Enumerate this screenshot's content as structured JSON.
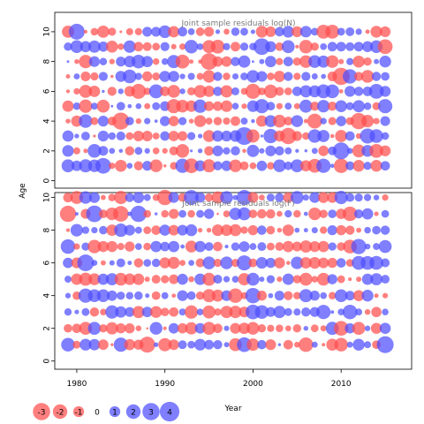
{
  "chart_data": {
    "type": "scatter",
    "variant": "bubble",
    "xlabel": "Year",
    "ylabel": "Age",
    "x_ticks": [
      1980,
      1990,
      2000,
      2010
    ],
    "y_ticks": [
      0,
      2,
      4,
      6,
      8,
      10
    ],
    "xlim": [
      1977.5,
      2018.0
    ],
    "years": [
      1979,
      1980,
      1981,
      1982,
      1983,
      1984,
      1985,
      1986,
      1987,
      1988,
      1989,
      1990,
      1991,
      1992,
      1993,
      1994,
      1995,
      1996,
      1997,
      1998,
      1999,
      2000,
      2001,
      2002,
      2003,
      2004,
      2005,
      2006,
      2007,
      2008,
      2009,
      2010,
      2011,
      2012,
      2013,
      2014,
      2015
    ],
    "ages": [
      1,
      2,
      3,
      4,
      5,
      6,
      7,
      8,
      9,
      10
    ],
    "colors": {
      "negative": "#ff4d4d",
      "positive": "#4d4dff"
    },
    "panels": [
      {
        "title": "Joint sample residuals log(N)",
        "ylim": [
          -0.5,
          11.3
        ],
        "seed": 7
      },
      {
        "title": "Joint sample residuals log(F)",
        "ylim": [
          -0.5,
          10.3
        ],
        "seed": 19
      }
    ],
    "legend": {
      "values": [
        -3,
        -2,
        -1,
        0,
        1,
        2,
        3,
        4
      ],
      "labels": [
        "-3",
        "-2",
        "-1",
        "0",
        "1",
        "2",
        "3",
        "4"
      ]
    }
  }
}
